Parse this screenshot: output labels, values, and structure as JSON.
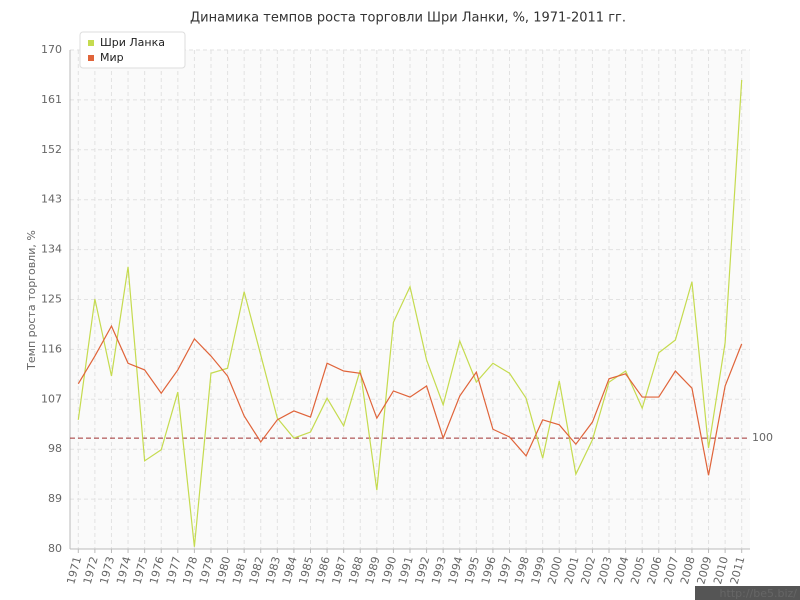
{
  "chart_data": {
    "type": "line",
    "title": "Динамика темпов роста торговли Шри Ланки, %, 1971-2011 гг.",
    "y_label": "Темп роста торговли, %",
    "categories": [
      "1971",
      "1972",
      "1973",
      "1974",
      "1975",
      "1976",
      "1977",
      "1978",
      "1979",
      "1980",
      "1981",
      "1982",
      "1983",
      "1984",
      "1985",
      "1986",
      "1987",
      "1988",
      "1989",
      "1990",
      "1991",
      "1992",
      "1993",
      "1994",
      "1995",
      "1996",
      "1997",
      "1998",
      "1999",
      "2000",
      "2001",
      "2002",
      "2003",
      "2004",
      "2005",
      "2006",
      "2007",
      "2008",
      "2009",
      "2010",
      "2011"
    ],
    "series": [
      {
        "name": "Шри Ланка",
        "color": "#c5db4f",
        "values": [
          103.3,
          125.1,
          111.2,
          130.9,
          95.9,
          97.9,
          108.3,
          80.4,
          111.7,
          112.6,
          126.4,
          115,
          103.6,
          100,
          101.1,
          107.2,
          102.2,
          112.3,
          90.6,
          120.9,
          127.3,
          114.1,
          106,
          117.5,
          110.1,
          113.5,
          111.7,
          107.2,
          96.4,
          110.3,
          93.5,
          99.7,
          110.1,
          112.1,
          105.4,
          115.4,
          117.7,
          128.2,
          98.2,
          117.2,
          164.6
        ]
      },
      {
        "name": "Мир",
        "color": "#e0643a",
        "values": [
          109.8,
          114.8,
          120.2,
          113.5,
          112.3,
          108.1,
          112.3,
          117.9,
          114.8,
          111.2,
          104,
          99.3,
          103.3,
          104.9,
          103.8,
          113.5,
          112.1,
          111.7,
          103.6,
          108.5,
          107.4,
          109.4,
          100,
          107.6,
          111.9,
          101.6,
          100.2,
          96.8,
          103.3,
          102.4,
          98.9,
          102.9,
          110.7,
          111.6,
          107.4,
          107.4,
          112.1,
          109,
          93.3,
          109.4,
          117
        ]
      }
    ],
    "ylim": [
      80,
      170
    ],
    "yticks": [
      80,
      89,
      98,
      107,
      116,
      125,
      134,
      143,
      152,
      161,
      170
    ],
    "reference_line": {
      "value": 100,
      "color": "#a03030"
    },
    "grid": true,
    "legend": "top-left",
    "watermark": "http://be5.biz/"
  }
}
